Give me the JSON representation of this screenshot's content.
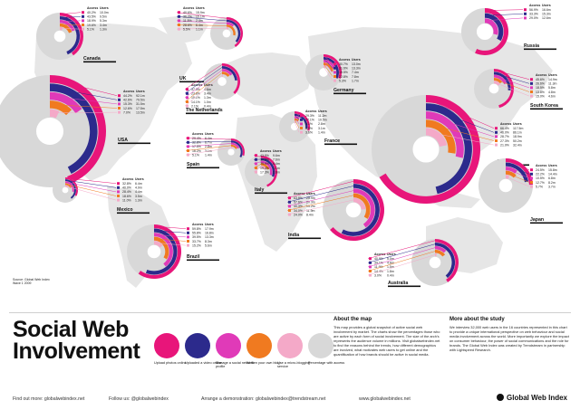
{
  "title": "Social Web Involvement",
  "header_access": "Access",
  "header_users": "Users",
  "source": "Source: Global Web Index",
  "source_wave": "Wave 1 2009",
  "countries": {
    "canada": {
      "name": "Canada",
      "rows": [
        [
          "40.2%",
          "10.0m"
        ],
        [
          "43.5%",
          "9.5m"
        ],
        [
          "18.9%",
          "5.3m"
        ],
        [
          "19.6%",
          "3.4m"
        ],
        [
          "5.1%",
          "1.3m"
        ]
      ]
    },
    "uk": {
      "name": "UK",
      "rows": [
        [
          "40.6%",
          "15.9m"
        ],
        [
          "36.2%",
          "15.1m"
        ],
        [
          "11.5%",
          "2.4m"
        ],
        [
          "28.6%",
          "6.4m"
        ],
        [
          "5.5%",
          "1.1m"
        ]
      ]
    },
    "usa": {
      "name": "USA",
      "rows": [
        [
          "44.2%",
          "92.1m"
        ],
        [
          "42.6%",
          "79.5m"
        ],
        [
          "15.3%",
          "31.5m"
        ],
        [
          "12.6%",
          "17.5m"
        ],
        [
          "7.0%",
          "13.5m"
        ]
      ]
    },
    "netherlands": {
      "name": "The Netherlands",
      "rows": [
        [
          "37.3%",
          "4.6m"
        ],
        [
          "23.8%",
          "3.4m"
        ],
        [
          "15.1%",
          "1.3m"
        ],
        [
          "14.1%",
          "1.0m"
        ],
        [
          "2.1%",
          "0.4m"
        ]
      ]
    },
    "spain": {
      "name": "Spain",
      "rows": [
        [
          "29.4%",
          "6.4m"
        ],
        [
          "32.8%",
          "6.7m"
        ],
        [
          "17.5%",
          "2.8m"
        ],
        [
          "16.2%",
          "3.1m"
        ],
        [
          "5.1%",
          "1.4m"
        ]
      ]
    },
    "germany": {
      "name": "Germany",
      "rows": [
        [
          "30.7%",
          "13.0m"
        ],
        [
          "31.6%",
          "13.3m"
        ],
        [
          "19.5%",
          "7.4m"
        ],
        [
          "22.8%",
          "7.8m"
        ],
        [
          "5.3%",
          "1.7m"
        ]
      ]
    },
    "france": {
      "name": "France",
      "rows": [
        [
          "29.3%",
          "11.2m"
        ],
        [
          "27.1%",
          "10.5m"
        ],
        [
          "8.1%",
          "2.8m"
        ],
        [
          "8.9%",
          "3.1m"
        ],
        [
          "3.6%",
          "1.4m"
        ]
      ]
    },
    "italy": {
      "name": "Italy",
      "rows": [
        [
          "43.5%",
          "9.6m"
        ],
        [
          "30.8%",
          "7.6m"
        ],
        [
          "29.9%",
          "6.4m"
        ],
        [
          "19.4%",
          "4.1m"
        ],
        [
          "17.3%",
          "2.6m"
        ]
      ]
    },
    "mexico": {
      "name": "Mexico",
      "rows": [
        [
          "32.8%",
          "6.4m"
        ],
        [
          "40.0%",
          "4.9m"
        ],
        [
          "28.4%",
          "4.4m"
        ],
        [
          "18.6%",
          "3.5m"
        ],
        [
          "11.0%",
          "1.3m"
        ]
      ]
    },
    "brazil": {
      "name": "Brazil",
      "rows": [
        [
          "59.8%",
          "17.9m"
        ],
        [
          "55.8%",
          "16.8m"
        ],
        [
          "39.5%",
          "13.3m"
        ],
        [
          "33.7%",
          "8.3m"
        ],
        [
          "15.2%",
          "5.6m"
        ]
      ]
    },
    "india": {
      "name": "India",
      "rows": [
        [
          "63.8%",
          "25.9m"
        ],
        [
          "57.6%",
          "20.3m"
        ],
        [
          "40.3%",
          "15.2m"
        ],
        [
          "34.0%",
          "11.9m"
        ],
        [
          "24.0%",
          "8.4m"
        ]
      ]
    },
    "russia": {
      "name": "Russia",
      "rows": [
        [
          "56.9%",
          "16.6m"
        ],
        [
          "33.3%",
          "15.3m"
        ],
        [
          "29.0%",
          "12.6m"
        ]
      ]
    },
    "south_korea": {
      "name": "South Korea",
      "rows": [
        [
          "45.6%",
          "14.9m"
        ],
        [
          "26.6%",
          "11.3m"
        ],
        [
          "18.5%",
          "5.8m"
        ],
        [
          "13.8%",
          "4.8m"
        ],
        [
          "15.0%",
          "4.6m"
        ]
      ]
    },
    "china": {
      "name": "China",
      "rows": [
        [
          "66.4%",
          "117.5m"
        ],
        [
          "46.0%",
          "86.1m"
        ],
        [
          "28.7%",
          "18.9m"
        ],
        [
          "27.3%",
          "50.2m"
        ],
        [
          "21.9%",
          "32.4m"
        ]
      ]
    },
    "japan": {
      "name": "Japan",
      "rows": [
        [
          "24.5%",
          "15.8m"
        ],
        [
          "22.2%",
          "14.4m"
        ],
        [
          "10.5%",
          "6.8m"
        ],
        [
          "12.7%",
          "8.2m"
        ],
        [
          "5.7%",
          "3.7m"
        ]
      ]
    },
    "australia": {
      "name": "Australia",
      "rows": [
        [
          "40.9%",
          "5.0m"
        ],
        [
          "39.1%",
          "4.8m"
        ],
        [
          "11.9%",
          "1.5m"
        ],
        [
          "14.4%",
          "1.8m"
        ],
        [
          "3.0%",
          "0.4m"
        ]
      ]
    }
  },
  "legend": [
    {
      "label": "Upload photos online",
      "icon": "photo-icon",
      "color": "#e8157a"
    },
    {
      "label": "Uploaded a video online",
      "icon": "video-icon",
      "color": "#2c2a8c"
    },
    {
      "label": "Manage a social network profile",
      "icon": "profile-icon",
      "color": "#e03ab8"
    },
    {
      "label": "Written your own blog",
      "icon": "blog-icon",
      "color": "#f07a20"
    },
    {
      "label": "Use a micro-blogging service",
      "icon": "microblog-icon",
      "color": "#f4a9c8"
    },
    {
      "label": "Percentage with access",
      "icon": "access-icon",
      "color": "#d8d8d8"
    }
  ],
  "about": {
    "title": "About the map",
    "text": "This map provides a global snapshot of active social web involvement by market. The charts show the percentages those who are active by each form of social involvement. The size of the arch's represents the audience volume in millions. Visit globalwebindex.net to find the reasons behind the trends, how different demographics are involved, what motivates web users to get online and the quantification of how brands should be active in social media."
  },
  "study": {
    "title": "More about the study",
    "text": "We interview 32,000 web users in the 16 countries represented in this chart to provide a unique international perspective on web behaviour and social media involvement across the world. More importantly we explore the impact on consumer behaviour, the power of social communications and the role for brands. The Global Web Index was created by Trendstream in partnership with Lightspeed Research."
  },
  "footer": {
    "more": "Find out more: globalwebindex.net",
    "twitter": "Follow us: @globalwebindex",
    "demo": "Arrange a demonstration: globalwebindex@trendstream.net",
    "web": "www.globalwebindex.net",
    "brand": "Global Web Index"
  },
  "colors": {
    "photos": "#e8157a",
    "video": "#2c2a8c",
    "profile": "#e03ab8",
    "blog": "#f07a20",
    "microblog": "#f4a9c8",
    "access": "#d8d8d8",
    "map": "#e6e6e6"
  }
}
